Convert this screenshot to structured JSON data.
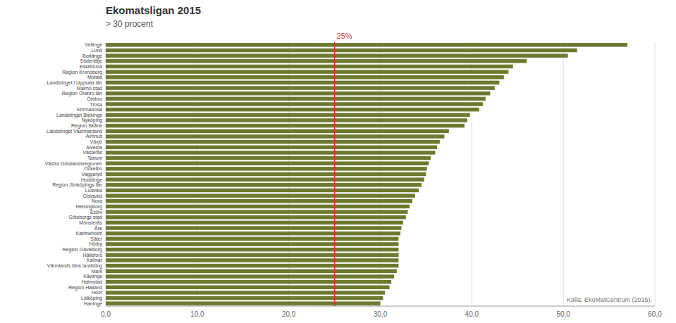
{
  "chart_data": {
    "type": "bar",
    "orientation": "horizontal",
    "title": "Ekomatsligan 2015",
    "subtitle": "> 30 procent",
    "color": "#6b7a2e",
    "grid": true,
    "xlim": [
      0,
      60
    ],
    "xticks": [
      {
        "value": 0,
        "label": "0,0"
      },
      {
        "value": 10,
        "label": "10,0"
      },
      {
        "value": 20,
        "label": "20,0"
      },
      {
        "value": 30,
        "label": "30,0"
      },
      {
        "value": 40,
        "label": "40,0"
      },
      {
        "value": 50,
        "label": "50,0"
      },
      {
        "value": 60,
        "label": "60,0"
      }
    ],
    "annotations": [
      {
        "text": "25%",
        "x": 25,
        "color": "#cc3333"
      },
      {
        "text": "Källa: EkoMatCentrum (2015)."
      }
    ],
    "categories": [
      "Vellinge",
      "Lund",
      "Borlänge",
      "Södertälje",
      "Eskilstuna",
      "Region Kronoberg",
      "Motala",
      "Landstinget i Uppsala län",
      "Malmö stad",
      "Region Örebro län",
      "Örebro",
      "Trosa",
      "Emmaboda",
      "Landstinget Blekinge",
      "Nyköping",
      "Region Skåne",
      "Landstinget Västmanland",
      "Älmhult",
      "Växjö",
      "Alvesta",
      "Västerås",
      "Tanum",
      "Västra Götalandsregionen",
      "Ockelbo",
      "Vaggeryd",
      "Huddinge",
      "Region Jönköpings län",
      "Ludvika",
      "Gislaved",
      "Nora",
      "Helsingborg",
      "Eslöv",
      "Göteborgs stad",
      "Mönsterås",
      "Åre",
      "Katrineholm",
      "Säter",
      "Hörby",
      "Region Gävleborg",
      "Hällefors",
      "Kalmar",
      "Värmlands läns landsting",
      "Mark",
      "Kävlinge",
      "Halmstad",
      "Region Halland",
      "Höör",
      "Lidköping",
      "Haninge"
    ],
    "values": [
      57.0,
      51.5,
      50.5,
      46.0,
      44.5,
      44.0,
      43.5,
      43.0,
      42.5,
      42.0,
      41.5,
      41.2,
      40.8,
      39.8,
      39.5,
      39.2,
      37.5,
      37.0,
      36.5,
      36.2,
      36.0,
      35.5,
      35.3,
      35.1,
      35.0,
      34.8,
      34.5,
      34.2,
      33.8,
      33.5,
      33.2,
      33.0,
      32.8,
      32.5,
      32.3,
      32.2,
      32.0,
      32.0,
      32.0,
      32.0,
      32.0,
      32.0,
      31.8,
      31.5,
      31.2,
      31.0,
      30.5,
      30.3,
      30.0
    ]
  }
}
